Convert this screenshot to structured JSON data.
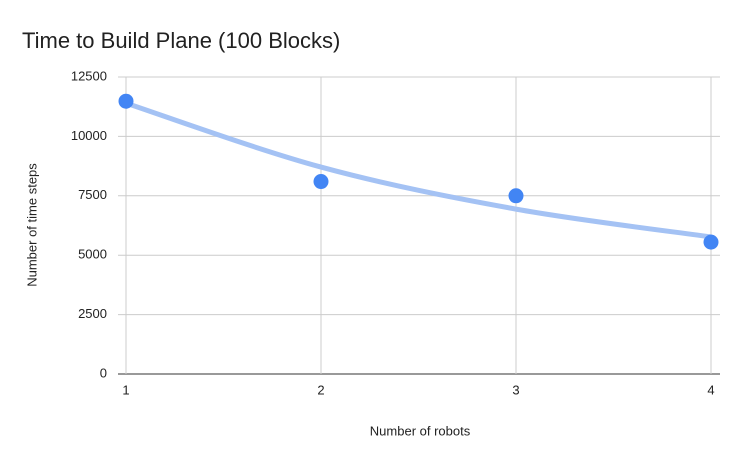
{
  "chart_data": {
    "type": "scatter",
    "title": "Time to Build Plane (100 Blocks)",
    "x_label": "Number of robots",
    "y_label": "Number of time steps",
    "x": [
      1,
      2,
      3,
      4
    ],
    "series": [
      {
        "color": "#4285f4",
        "values": [
          11480,
          8100,
          7500,
          5550
        ]
      }
    ],
    "trendline": {
      "color": "#a4c2f4",
      "values": [
        11400,
        8710,
        6940,
        5770
      ]
    },
    "xlim": [
      1,
      4
    ],
    "xticks": [
      1,
      2,
      3,
      4
    ],
    "ylim": [
      0,
      12500
    ],
    "yticks": [
      0,
      2500,
      5000,
      7500,
      10000,
      12500
    ],
    "grid": true
  }
}
